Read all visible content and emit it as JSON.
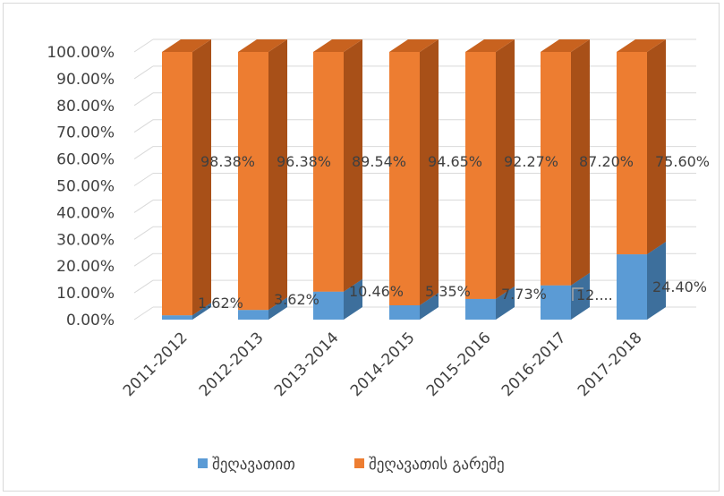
{
  "chart_data": {
    "type": "bar",
    "stacked": true,
    "three_d": true,
    "categories": [
      "2011-2012",
      "2012-2013",
      "2013-2014",
      "2014-2015",
      "2015-2016",
      "2016-2017",
      "2017-2018"
    ],
    "series": [
      {
        "name": "შეღავათით",
        "color": "#5b9bd5",
        "values": [
          1.62,
          3.62,
          10.46,
          5.35,
          7.73,
          12.8,
          24.4
        ],
        "labels": [
          "1.62%",
          "3.62%",
          "10.46%",
          "5.35%",
          "7.73%",
          "12....",
          "24.40%"
        ]
      },
      {
        "name": "შეღავათის გარეშე",
        "color": "#ed7d31",
        "values": [
          98.38,
          96.38,
          89.54,
          94.65,
          92.27,
          87.2,
          75.6
        ],
        "labels": [
          "98.38%",
          "96.38%",
          "89.54%",
          "94.65%",
          "92.27%",
          "87.20%",
          "75.60%"
        ]
      }
    ],
    "y_ticks": [
      "0.00%",
      "10.00%",
      "20.00%",
      "30.00%",
      "40.00%",
      "50.00%",
      "60.00%",
      "70.00%",
      "80.00%",
      "90.00%",
      "100.00%"
    ],
    "ylim": [
      0,
      100
    ],
    "grid": true,
    "legend_position": "bottom"
  }
}
